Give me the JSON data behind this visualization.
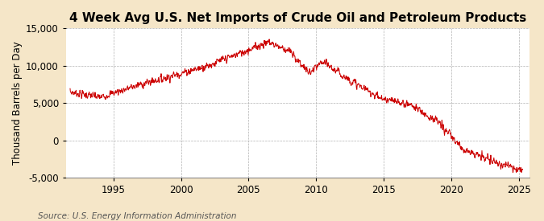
{
  "title": "4 Week Avg U.S. Net Imports of Crude Oil and Petroleum Products",
  "ylabel": "Thousand Barrels per Day",
  "source": "Source: U.S. Energy Information Administration",
  "line_color": "#cc0000",
  "background_color": "#f5e6c8",
  "plot_background_color": "#ffffff",
  "ylim": [
    -5000,
    15000
  ],
  "yticks": [
    -5000,
    0,
    5000,
    10000,
    15000
  ],
  "xticks": [
    1995,
    2000,
    2005,
    2010,
    2015,
    2020,
    2025
  ],
  "xlim_start_year": 1991.5,
  "xlim_end_year": 2025.8,
  "title_fontsize": 11,
  "axis_fontsize": 8.5,
  "source_fontsize": 7.5,
  "linewidth": 0.7
}
